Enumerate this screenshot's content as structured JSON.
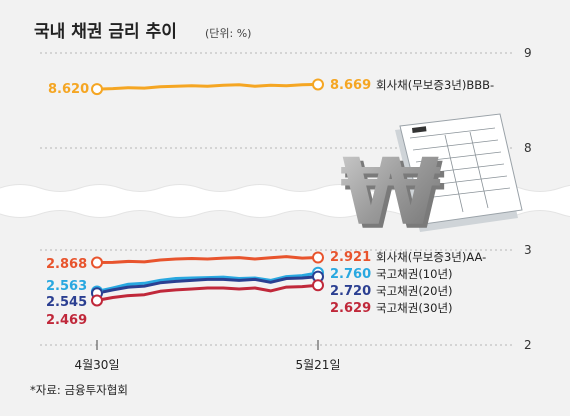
{
  "title": "국내 채권 금리 추이",
  "unit": "(단위: %)",
  "source": "*자료: 금융투자협회",
  "chart_data": {
    "type": "line",
    "title": "국내 채권 금리 추이",
    "unit": "(단위: %)",
    "x_ticks": [
      "4월30일",
      "5월21일"
    ],
    "y_ticks": [
      "9",
      "8",
      "3",
      "2"
    ],
    "axis_breaks": true,
    "grid": true,
    "series": [
      {
        "name": "회사채(무보증3년)BBB-",
        "color": "#f5a623",
        "start_label": "8.620",
        "end_label": "8.669",
        "values": [
          8.62,
          8.625,
          8.635,
          8.63,
          8.645,
          8.65,
          8.655,
          8.65,
          8.66,
          8.665,
          8.65,
          8.66,
          8.655,
          8.665,
          8.669
        ]
      },
      {
        "name": "회사채(무보증3년)AA-",
        "color": "#e8542d",
        "start_label": "2.868",
        "end_label": "2.921",
        "values": [
          2.868,
          2.87,
          2.88,
          2.875,
          2.895,
          2.905,
          2.91,
          2.905,
          2.915,
          2.92,
          2.905,
          2.918,
          2.93,
          2.915,
          2.921
        ]
      },
      {
        "name": "국고채권(10년)",
        "color": "#29a8e0",
        "start_label": "2.563",
        "end_label": "2.760",
        "values": [
          2.563,
          2.6,
          2.64,
          2.65,
          2.68,
          2.7,
          2.705,
          2.71,
          2.715,
          2.7,
          2.705,
          2.68,
          2.72,
          2.73,
          2.76
        ]
      },
      {
        "name": "국고채권(20년)",
        "color": "#2b3f91",
        "start_label": "2.545",
        "end_label": "2.720",
        "values": [
          2.545,
          2.58,
          2.61,
          2.62,
          2.655,
          2.67,
          2.68,
          2.69,
          2.69,
          2.68,
          2.69,
          2.66,
          2.7,
          2.705,
          2.72
        ]
      },
      {
        "name": "국고채권(30년)",
        "color": "#c0283a",
        "start_label": "2.469",
        "end_label": "2.629",
        "values": [
          2.469,
          2.5,
          2.52,
          2.53,
          2.565,
          2.58,
          2.59,
          2.6,
          2.6,
          2.59,
          2.6,
          2.57,
          2.61,
          2.615,
          2.629
        ]
      }
    ]
  }
}
